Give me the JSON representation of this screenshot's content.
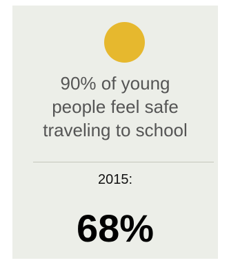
{
  "colors": {
    "dot": "#e6b82e",
    "card_background": "#eceee8"
  },
  "stat_card": {
    "icon": "yellow-circle-icon",
    "headline_lines": [
      "90% of young",
      "people feel safe",
      "traveling to school"
    ],
    "year_label": "2015:",
    "value": "68%"
  }
}
